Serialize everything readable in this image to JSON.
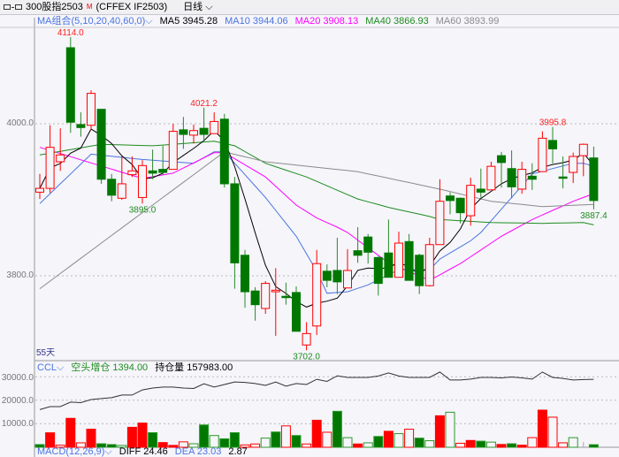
{
  "window": {
    "icon": "link-icon",
    "symbol": "300股指2503",
    "marker": "M",
    "exchange_code": "(CFFEX IF2503)",
    "period": "日线"
  },
  "ma_legend": {
    "selector": "MA组合(5,10,20,40,60,0)",
    "items": [
      {
        "label": "MA5 3945.28",
        "color": "#000000"
      },
      {
        "label": "MA10 3944.06",
        "color": "#4a74e0"
      },
      {
        "label": "MA20 3908.13",
        "color": "#ff00ff"
      },
      {
        "label": "MA40 3866.93",
        "color": "#1e8c1e"
      },
      {
        "label": "MA60 3893.99",
        "color": "#8c8c8c"
      }
    ]
  },
  "main_axis": {
    "ticks": [
      "4000.0",
      "3800.0"
    ]
  },
  "days_label": "55天",
  "annotations": [
    {
      "text": "4114.0",
      "candle": 4,
      "type": "high"
    },
    {
      "text": "4021.2",
      "candle": 17,
      "type": "high"
    },
    {
      "text": "3995.8",
      "candle": 51,
      "type": "high"
    },
    {
      "text": "3895.0",
      "candle": 11,
      "type": "low"
    },
    {
      "text": "3702.0",
      "candle": 27,
      "type": "low"
    },
    {
      "text": "3887.4",
      "candle": 55,
      "type": "low"
    }
  ],
  "ccl_legend": {
    "selector": "CCL",
    "short_label": "空头增仓 1394.00",
    "oi_label": "持仓量 157983.00"
  },
  "ccl_axis": {
    "ticks": [
      "30000.0",
      "20000.0",
      "10000.0"
    ]
  },
  "macd_legend": {
    "selector": "MACD(12,26,9)",
    "diff": "DIFF 24.46",
    "dea": "DEA 23.03",
    "macd": "2.87"
  },
  "colors": {
    "up": "#ff0000",
    "down": "#007800",
    "background": "#f5f5fa"
  },
  "chart_data": [
    {
      "type": "candlestick",
      "ylim": [
        3680,
        4140
      ],
      "grid": true,
      "ohlc": [
        [
          3910,
          3934,
          3901,
          3915
        ],
        [
          3915,
          3998,
          3909,
          3969
        ],
        [
          3950,
          3994,
          3938,
          3959
        ],
        [
          4100,
          4114,
          3988,
          4002
        ],
        [
          3999,
          4015,
          3983,
          3995
        ],
        [
          3998,
          4044,
          3992,
          4040
        ],
        [
          4019,
          4019,
          3921,
          3927
        ],
        [
          3927,
          3934,
          3898,
          3906
        ],
        [
          3902,
          3957,
          3900,
          3921
        ],
        [
          3933,
          3957,
          3930,
          3938
        ],
        [
          3903,
          3952,
          3895,
          3945
        ],
        [
          3938,
          3966,
          3927,
          3935
        ],
        [
          3940,
          3971,
          3933,
          3936
        ],
        [
          3940,
          4000,
          3940,
          3990
        ],
        [
          3992,
          4009,
          3967,
          3986
        ],
        [
          3985,
          3999,
          3974,
          3991
        ],
        [
          3994,
          4021.2,
          3977,
          3986
        ],
        [
          3987,
          4015,
          3987,
          4003
        ],
        [
          4006,
          4013,
          3916,
          3921
        ],
        [
          3921,
          3930,
          3783,
          3817
        ],
        [
          3827,
          3834,
          3758,
          3779
        ],
        [
          3780,
          3785,
          3741,
          3762
        ],
        [
          3757,
          3793,
          3750,
          3790
        ],
        [
          3779,
          3810,
          3721,
          3781
        ],
        [
          3773,
          3791,
          3762,
          3772
        ],
        [
          3778,
          3786,
          3727,
          3727
        ],
        [
          3709,
          3739,
          3702,
          3724
        ],
        [
          3734,
          3834,
          3722,
          3816
        ],
        [
          3806,
          3815,
          3785,
          3794
        ],
        [
          3807,
          3850,
          3776,
          3792
        ],
        [
          3784,
          3835,
          3784,
          3807
        ],
        [
          3833,
          3864,
          3817,
          3827
        ],
        [
          3851,
          3855,
          3816,
          3831
        ],
        [
          3824,
          3826,
          3774,
          3790
        ],
        [
          3830,
          3874,
          3798,
          3798
        ],
        [
          3798,
          3858,
          3798,
          3843
        ],
        [
          3845,
          3855,
          3794,
          3794
        ],
        [
          3827,
          3829,
          3776,
          3787
        ],
        [
          3787,
          3850,
          3786,
          3841
        ],
        [
          3841,
          3927,
          3841,
          3898
        ],
        [
          3905,
          3910,
          3881,
          3899
        ],
        [
          3902,
          3903,
          3869,
          3883
        ],
        [
          3879,
          3929,
          3866,
          3919
        ],
        [
          3914,
          3941,
          3903,
          3910
        ],
        [
          3913,
          3950,
          3913,
          3944
        ],
        [
          3958,
          3963,
          3916,
          3949
        ],
        [
          3941,
          3965,
          3902,
          3917
        ],
        [
          3914,
          3950,
          3908,
          3940
        ],
        [
          3931,
          3948,
          3913,
          3927
        ],
        [
          3937,
          3990,
          3937,
          3981
        ],
        [
          3978,
          3995.8,
          3948,
          3967
        ],
        [
          3930,
          3957,
          3915,
          3929
        ],
        [
          3936,
          3962,
          3922,
          3957
        ],
        [
          3958,
          3974,
          3931,
          3973
        ],
        [
          3955,
          3970,
          3887.4,
          3899
        ]
      ],
      "ma_series": [
        {
          "name": "MA10",
          "color": "#4a74e0",
          "points": [
            [
              1,
              3895
            ],
            [
              6,
              3960
            ],
            [
              11,
              3953
            ],
            [
              16,
              3948
            ],
            [
              18,
              3963
            ],
            [
              19,
              3963
            ],
            [
              23,
              3903
            ],
            [
              26,
              3852
            ],
            [
              28,
              3806
            ],
            [
              29,
              3777
            ],
            [
              31,
              3779
            ],
            [
              33,
              3788
            ],
            [
              36,
              3808
            ],
            [
              39,
              3808
            ],
            [
              40,
              3822
            ],
            [
              43,
              3846
            ],
            [
              44,
              3857
            ],
            [
              47,
              3903
            ],
            [
              49,
              3934
            ],
            [
              53,
              3948
            ],
            [
              54,
              3948
            ],
            [
              55,
              3944
            ]
          ]
        },
        {
          "name": "MA20",
          "color": "#ff00ff",
          "points": [
            [
              1,
              3969
            ],
            [
              11,
              3928
            ],
            [
              14,
              3935
            ],
            [
              18,
              3962
            ],
            [
              19,
              3962
            ],
            [
              23,
              3930
            ],
            [
              26,
              3893
            ],
            [
              28,
              3876
            ],
            [
              30,
              3864
            ],
            [
              31,
              3857
            ],
            [
              35,
              3817
            ],
            [
              39,
              3794
            ],
            [
              42,
              3816
            ],
            [
              46,
              3852
            ],
            [
              49,
              3874
            ],
            [
              53,
              3898
            ],
            [
              55,
              3908
            ]
          ]
        },
        {
          "name": "MA40",
          "color": "#1e8c1e",
          "points": [
            [
              1,
              3959
            ],
            [
              7,
              3973
            ],
            [
              12,
              3971
            ],
            [
              18,
              3977
            ],
            [
              20,
              3971
            ],
            [
              23,
              3948
            ],
            [
              27,
              3930
            ],
            [
              32,
              3901
            ],
            [
              35,
              3890
            ],
            [
              39,
              3878
            ],
            [
              40,
              3874
            ],
            [
              45,
              3870
            ],
            [
              50,
              3869
            ],
            [
              54,
              3870
            ],
            [
              55,
              3867
            ]
          ]
        },
        {
          "name": "MA60",
          "color": "#8c8c8c",
          "points": [
            [
              1,
              3783
            ],
            [
              19,
              3963
            ],
            [
              23,
              3950
            ],
            [
              32,
              3937
            ],
            [
              40,
              3914
            ],
            [
              45,
              3898
            ],
            [
              50,
              3891
            ],
            [
              55,
              3894
            ]
          ]
        }
      ]
    },
    {
      "type": "bar+line",
      "ylim": [
        0,
        33000
      ],
      "grid": true,
      "bars": [
        {
          "v": 1150,
          "c": "down",
          "f": true
        },
        {
          "v": 6150,
          "c": "up",
          "f": true
        },
        {
          "v": 900,
          "c": "up",
          "f": false
        },
        {
          "v": 12300,
          "c": "up",
          "f": true
        },
        {
          "v": 1900,
          "c": "up",
          "f": false
        },
        {
          "v": 7700,
          "c": "up",
          "f": true
        },
        {
          "v": 1500,
          "c": "down",
          "f": true
        },
        {
          "v": 1150,
          "c": "down",
          "f": true
        },
        {
          "v": 800,
          "c": "down",
          "f": false
        },
        {
          "v": 8500,
          "c": "up",
          "f": true
        },
        {
          "v": 10300,
          "c": "up",
          "f": true
        },
        {
          "v": 6200,
          "c": "down",
          "f": true
        },
        {
          "v": 2000,
          "c": "up",
          "f": true
        },
        {
          "v": 800,
          "c": "up",
          "f": true
        },
        {
          "v": 2300,
          "c": "up",
          "f": false
        },
        {
          "v": 1500,
          "c": "down",
          "f": false
        },
        {
          "v": 9500,
          "c": "down",
          "f": true
        },
        {
          "v": 5000,
          "c": "down",
          "f": false
        },
        {
          "v": 3600,
          "c": "down",
          "f": true
        },
        {
          "v": 6200,
          "c": "down",
          "f": true
        },
        {
          "v": 1000,
          "c": "up",
          "f": false
        },
        {
          "v": 1400,
          "c": "up",
          "f": false
        },
        {
          "v": 3900,
          "c": "down",
          "f": false
        },
        {
          "v": 6500,
          "c": "down",
          "f": true
        },
        {
          "v": 9100,
          "c": "up",
          "f": false
        },
        {
          "v": 5000,
          "c": "down",
          "f": true
        },
        {
          "v": 1400,
          "c": "up",
          "f": false
        },
        {
          "v": 11500,
          "c": "up",
          "f": true
        },
        {
          "v": 6400,
          "c": "up",
          "f": false
        },
        {
          "v": 15300,
          "c": "down",
          "f": true
        },
        {
          "v": 4100,
          "c": "down",
          "f": false
        },
        {
          "v": 1400,
          "c": "up",
          "f": true
        },
        {
          "v": 1900,
          "c": "down",
          "f": false
        },
        {
          "v": 4600,
          "c": "down",
          "f": true
        },
        {
          "v": 6800,
          "c": "up",
          "f": true
        },
        {
          "v": 5800,
          "c": "down",
          "f": false
        },
        {
          "v": 7700,
          "c": "up",
          "f": false
        },
        {
          "v": 3900,
          "c": "down",
          "f": true
        },
        {
          "v": 2800,
          "c": "down",
          "f": false
        },
        {
          "v": 13400,
          "c": "up",
          "f": true
        },
        {
          "v": 14900,
          "c": "down",
          "f": false
        },
        {
          "v": 1700,
          "c": "up",
          "f": false
        },
        {
          "v": 2900,
          "c": "up",
          "f": true
        },
        {
          "v": 2600,
          "c": "down",
          "f": true
        },
        {
          "v": 2200,
          "c": "down",
          "f": false
        },
        {
          "v": 1200,
          "c": "up",
          "f": true
        },
        {
          "v": 1500,
          "c": "down",
          "f": true
        },
        {
          "v": 900,
          "c": "up",
          "f": true
        },
        {
          "v": 4100,
          "c": "up",
          "f": false
        },
        {
          "v": 15800,
          "c": "up",
          "f": true
        },
        {
          "v": 12800,
          "c": "up",
          "f": false
        },
        {
          "v": 1900,
          "c": "up",
          "f": false
        },
        {
          "v": 4100,
          "c": "down",
          "f": false
        },
        {
          "v": 0,
          "c": "down",
          "f": false
        },
        {
          "v": 1100,
          "c": "down",
          "f": true
        }
      ],
      "line": [
        16000,
        17300,
        17300,
        19200,
        19000,
        20300,
        20700,
        21100,
        22200,
        22200,
        24400,
        25200,
        25600,
        25600,
        25200,
        25000,
        27000,
        25600,
        26700,
        27800,
        27600,
        27100,
        26300,
        27800,
        26000,
        27100,
        26700,
        28900,
        28000,
        30400,
        29700,
        29700,
        29700,
        30300,
        31600,
        30300,
        29700,
        29700,
        29700,
        32000,
        28600,
        28600,
        29000,
        29700,
        29700,
        29500,
        29900,
        29500,
        29000,
        32000,
        29700,
        29300,
        28600,
        28800,
        28900
      ]
    }
  ]
}
